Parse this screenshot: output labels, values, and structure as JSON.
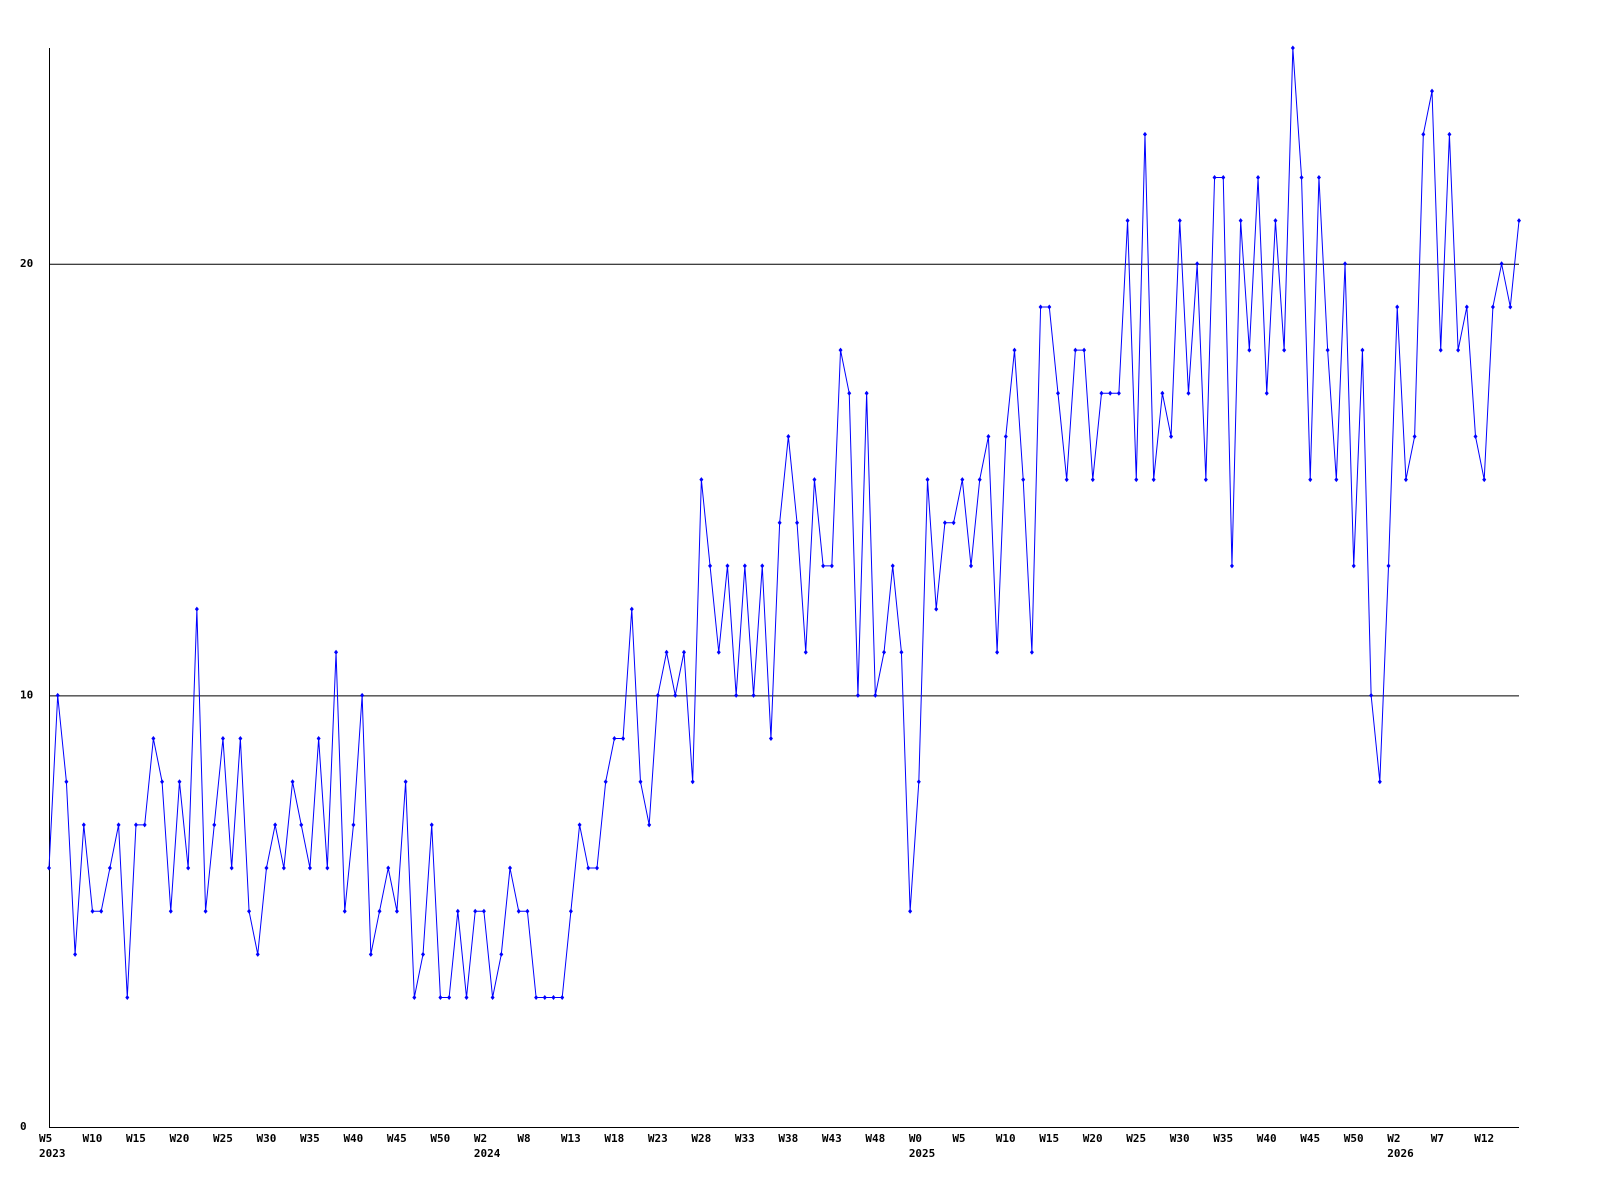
{
  "chart_data": {
    "type": "line",
    "categories": [
      "W5",
      null,
      null,
      null,
      null,
      "W10",
      null,
      null,
      null,
      null,
      "W15",
      null,
      null,
      null,
      null,
      "W20",
      null,
      null,
      null,
      null,
      "W25",
      null,
      null,
      null,
      null,
      "W30",
      null,
      null,
      null,
      null,
      "W35",
      null,
      null,
      null,
      null,
      "W40",
      null,
      null,
      null,
      null,
      "W45",
      null,
      null,
      null,
      null,
      "W50",
      null,
      null,
      null,
      null,
      "W2",
      null,
      null,
      null,
      null,
      "W8",
      null,
      null,
      null,
      null,
      "W13",
      null,
      null,
      null,
      null,
      "W18",
      null,
      null,
      null,
      null,
      "W23",
      null,
      null,
      null,
      null,
      "W28",
      null,
      null,
      null,
      null,
      "W33",
      null,
      null,
      null,
      null,
      "W38",
      null,
      null,
      null,
      null,
      "W43",
      null,
      null,
      null,
      null,
      "W48",
      null,
      null,
      null,
      null,
      "W0",
      null,
      null,
      null,
      null,
      "W5",
      null,
      null,
      null,
      null,
      "W10",
      null,
      null,
      null,
      null,
      "W15",
      null,
      null,
      null,
      null,
      "W20",
      null,
      null,
      null,
      null,
      "W25",
      null,
      null,
      null,
      null,
      "W30",
      null,
      null,
      null,
      null,
      "W35",
      null,
      null,
      null,
      null,
      "W40",
      null,
      null,
      null,
      null,
      "W45",
      null,
      null,
      null,
      null,
      "W50",
      null,
      null,
      null,
      null,
      "W2",
      null,
      null,
      null,
      null,
      "W7",
      null,
      null,
      null,
      null,
      "W12",
      null,
      null,
      null,
      null
    ],
    "category_years": [
      "2023",
      null,
      null,
      null,
      null,
      null,
      null,
      null,
      null,
      null,
      null,
      null,
      null,
      null,
      null,
      null,
      null,
      null,
      null,
      null,
      null,
      null,
      null,
      null,
      null,
      null,
      null,
      null,
      null,
      null,
      null,
      null,
      null,
      null,
      null,
      null,
      null,
      null,
      null,
      null,
      null,
      null,
      null,
      null,
      null,
      null,
      null,
      null,
      null,
      null,
      "2024",
      null,
      null,
      null,
      null,
      null,
      null,
      null,
      null,
      null,
      null,
      null,
      null,
      null,
      null,
      null,
      null,
      null,
      null,
      null,
      null,
      null,
      null,
      null,
      null,
      null,
      null,
      null,
      null,
      null,
      null,
      null,
      null,
      null,
      null,
      null,
      null,
      null,
      null,
      null,
      null,
      null,
      null,
      null,
      null,
      null,
      null,
      null,
      null,
      null,
      "2025",
      null,
      null,
      null,
      null,
      null,
      null,
      null,
      null,
      null,
      null,
      null,
      null,
      null,
      null,
      null,
      null,
      null,
      null,
      null,
      null,
      null,
      null,
      null,
      null,
      null,
      null,
      null,
      null,
      null,
      null,
      null,
      null,
      null,
      null,
      null,
      null,
      null,
      null,
      null,
      null,
      null,
      null,
      null,
      null,
      null,
      null,
      null,
      null,
      null,
      null,
      null,
      null,
      null,
      null,
      "2026",
      null,
      null,
      null,
      null,
      null,
      null,
      null,
      null,
      null,
      null,
      null,
      null,
      null,
      null
    ],
    "series": [
      {
        "color": "#0000ff",
        "values": [
          6,
          10,
          8,
          4,
          7,
          5,
          5,
          6,
          7,
          3,
          7,
          7,
          9,
          8,
          5,
          8,
          6,
          12,
          5,
          7,
          9,
          6,
          9,
          5,
          4,
          6,
          7,
          6,
          8,
          7,
          6,
          9,
          6,
          11,
          5,
          7,
          10,
          4,
          5,
          6,
          5,
          8,
          3,
          4,
          7,
          3,
          3,
          5,
          3,
          5,
          5,
          3,
          4,
          6,
          5,
          5,
          3,
          3,
          3,
          3,
          5,
          7,
          6,
          6,
          8,
          9,
          9,
          12,
          8,
          7,
          10,
          11,
          10,
          11,
          8,
          15,
          13,
          11,
          13,
          10,
          13,
          10,
          13,
          9,
          14,
          16,
          14,
          11,
          15,
          13,
          13,
          18,
          17,
          10,
          17,
          10,
          11,
          13,
          11,
          5,
          8,
          15,
          12,
          14,
          14,
          15,
          13,
          15,
          16,
          11,
          16,
          18,
          15,
          11,
          19,
          19,
          17,
          15,
          18,
          18,
          15,
          17,
          17,
          17,
          21,
          15,
          23,
          15,
          17,
          16,
          21,
          17,
          20,
          15,
          22,
          22,
          13,
          21,
          18,
          22,
          17,
          21,
          18,
          25,
          22,
          15,
          22,
          18,
          15,
          20,
          13,
          18,
          10,
          8,
          13,
          19,
          15,
          16,
          23,
          24,
          18,
          23,
          18,
          19,
          16,
          15,
          19,
          20,
          19,
          21
        ]
      }
    ],
    "ylim": [
      0,
      25
    ],
    "yticks": [
      0,
      10,
      20
    ],
    "grid": true
  }
}
